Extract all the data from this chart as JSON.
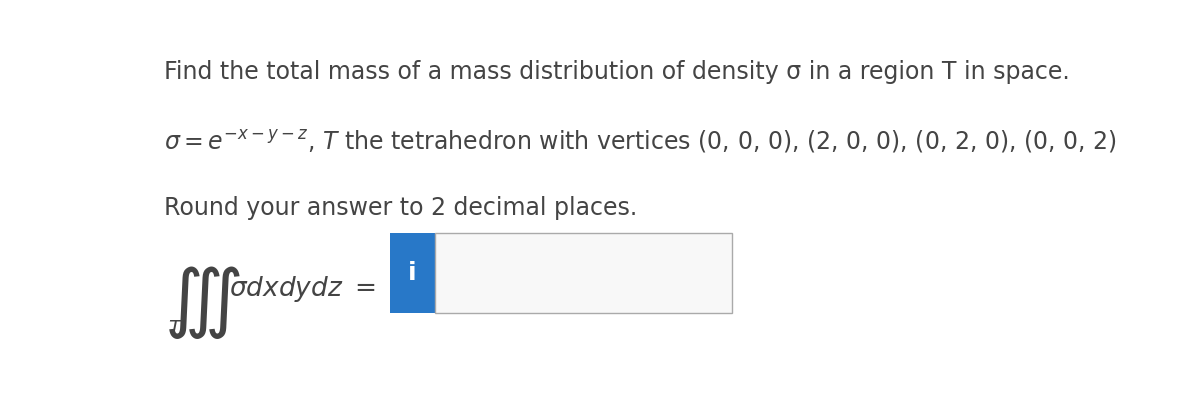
{
  "line1": "Find the total mass of a mass distribution of density σ in a region T in space.",
  "line3": "Round your answer to 2 decimal places.",
  "button_label": "i",
  "button_color": "#2878c8",
  "button_text_color": "#ffffff",
  "box_border_color": "#aaaaaa",
  "box_fill_color": "#f8f8f8",
  "background_color": "#ffffff",
  "text_color": "#444444",
  "font_size_main": 17,
  "font_size_integral": 22,
  "font_size_button": 18
}
